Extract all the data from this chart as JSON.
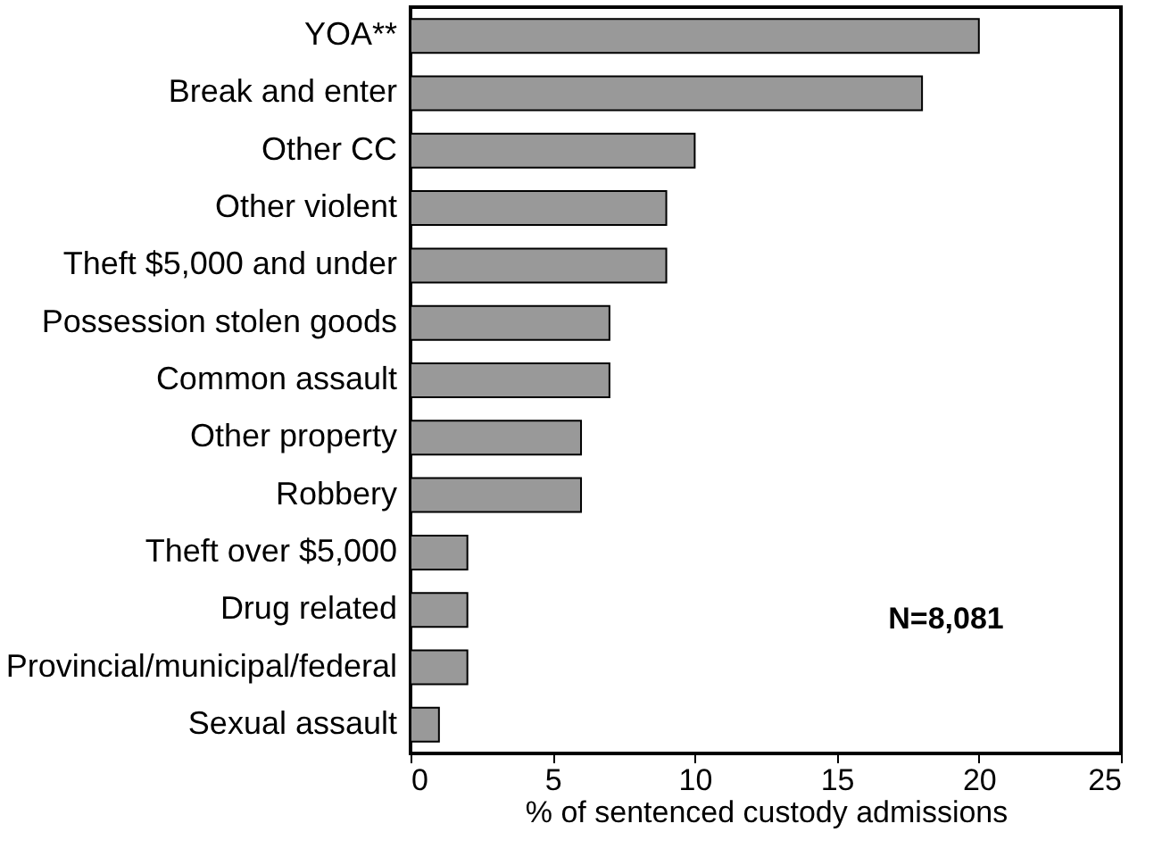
{
  "chart_data": {
    "type": "bar",
    "orientation": "horizontal",
    "xlabel": "% of sentenced custody admissions",
    "categories": [
      "YOA**",
      "Break and enter",
      "Other CC",
      "Other violent",
      "Theft $5,000 and under",
      "Possession stolen goods",
      "Common assault",
      "Other property",
      "Robbery",
      "Theft over $5,000",
      "Drug related",
      "Provincial/municipal/federal",
      "Sexual assault"
    ],
    "values": [
      20,
      18,
      10,
      9,
      9,
      7,
      7,
      6,
      6,
      2,
      2,
      2,
      1
    ],
    "color": "#999999",
    "xlim": [
      0,
      25
    ],
    "xticks": [
      0,
      5,
      10,
      15,
      20,
      25
    ],
    "grid": false,
    "annotations": [
      "N=8,081"
    ]
  }
}
